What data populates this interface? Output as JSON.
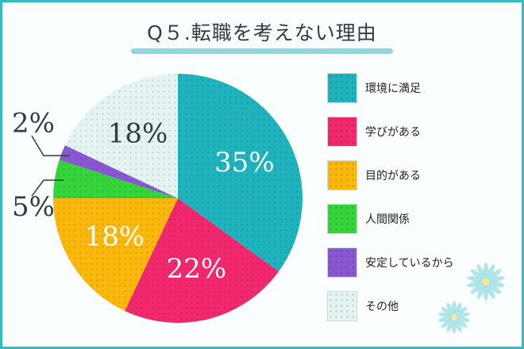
{
  "title": "Q５.転職を考えない理由",
  "chart_data": {
    "type": "pie",
    "title": "Q５.転職を考えない理由",
    "start_angle_deg": 0,
    "direction": "clockwise",
    "legend_position": "right",
    "categories": [
      "環境に満足",
      "学びがある",
      "目的がある",
      "人間関係",
      "安定しているから",
      "その他"
    ],
    "values": [
      35,
      22,
      18,
      5,
      2,
      18
    ],
    "value_labels": [
      "35%",
      "22%",
      "18%",
      "5%",
      "2%",
      "18%"
    ],
    "colors": [
      "#1fb3bd",
      "#f2286e",
      "#fbb80c",
      "#35d43a",
      "#8a57d3",
      "#e6f3f3"
    ]
  }
}
